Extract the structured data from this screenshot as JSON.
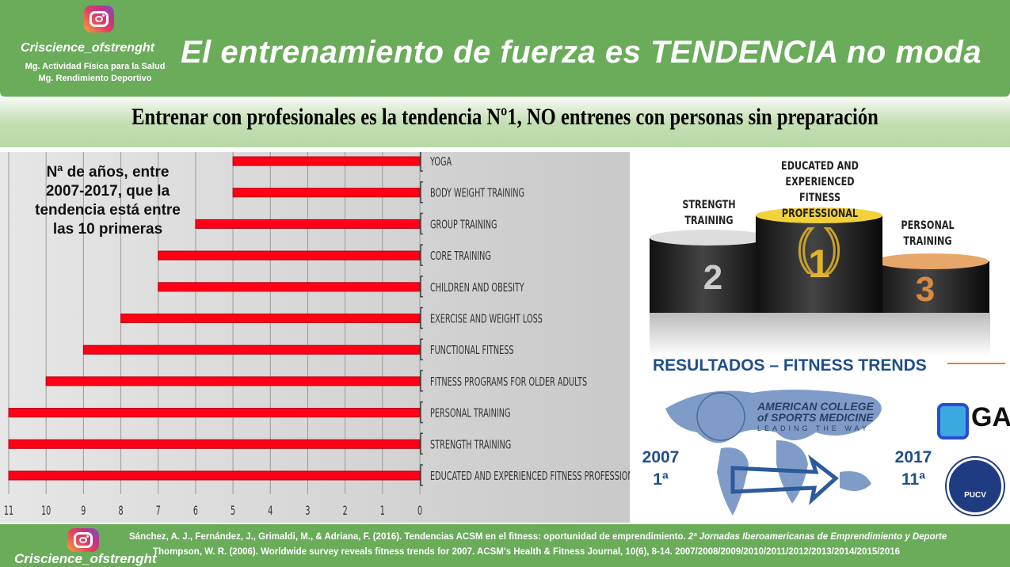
{
  "header": {
    "handle": "Criscience_ofstrenght",
    "degree1": "Mg. Actividad Física para la Salud",
    "degree2": "Mg. Rendimiento Deportivo",
    "title": "El entrenamiento de fuerza es TENDENCIA no moda",
    "icon": "instagram-icon"
  },
  "subtitle": "Entrenar con profesionales es la tendencia Nº1, NO entrenes con personas sin preparación",
  "chart_note": [
    "Nª de años, entre",
    "2007-2017, que la",
    "tendencia está entre",
    "las 10 primeras"
  ],
  "chart_data": {
    "type": "bar",
    "orientation": "horizontal",
    "x_reversed": true,
    "categories": [
      "YOGA",
      "BODY WEIGHT TRAINING",
      "GROUP TRAINING",
      "CORE TRAINING",
      "CHILDREN AND OBESITY",
      "EXERCISE AND WEIGHT LOSS",
      "FUNCTIONAL FITNESS",
      "FITNESS PROGRAMS FOR OLDER ADULTS",
      "PERSONAL TRAINING",
      "STRENGTH TRAINING",
      "EDUCATED AND EXPERIENCED FITNESS PROFESSIONALS"
    ],
    "values": [
      5,
      5,
      6,
      7,
      7,
      8,
      9,
      10,
      11,
      11,
      11
    ],
    "xlim": [
      0,
      11
    ],
    "xticks": [
      "11",
      "10",
      "9",
      "8",
      "7",
      "6",
      "5",
      "4",
      "3",
      "2",
      "1",
      "0"
    ],
    "grid": true,
    "bar_color": "#ff0016"
  },
  "podium": {
    "first": "EDUCATED AND EXPERIENCED FITNESS PROFESSIONAL",
    "second": "STRENGTH TRAINING",
    "third": "PERSONAL TRAINING",
    "n1": "1",
    "n2": "2",
    "n3": "3"
  },
  "results": {
    "title": "RESULTADOS – FITNESS TRENDS",
    "year_start": "2007",
    "rank_start": "1ª",
    "year_end": "2017",
    "rank_end": "11ª",
    "acsm_line1": "AMERICAN COLLEGE",
    "acsm_line2": "of SPORTS MEDICINE",
    "acsm_tag": "LEADING THE WAY",
    "gaf": "GAF",
    "pucv": "PUCV"
  },
  "footer": {
    "handle": "Criscience_ofstrenght",
    "ref1_plain": "Sánchez, A. J., Fernández, J., Grimaldi, M., & Adriana, F. (2016). Tendencias ACSM en el fitness: oportunidad de emprendimiento. ",
    "ref1_italic": "2ª Jornadas Iberoamericanas de Emprendimiento y Deporte",
    "ref2": "Thompson, W. R. (2006). Worldwide survey reveals fitness trends for 2007. ACSM's Health & Fitness Journal, 10(6), 8-14. 2007/2008/2009/2010/2011/2012/2013/2014/2015/2016"
  },
  "colors": {
    "green": "#6aac5a",
    "accent_blue": "#1f4e8c",
    "bar": "#ff0016"
  }
}
